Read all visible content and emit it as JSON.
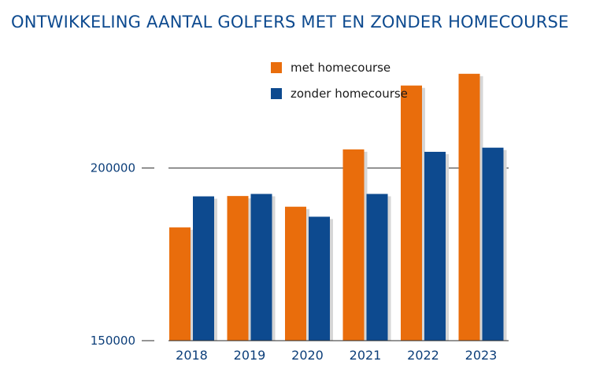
{
  "chart_data": {
    "type": "bar",
    "title": "ONTWIKKELING AANTAL GOLFERS MET EN ZONDER HOMECOURSE",
    "xlabel": "",
    "ylabel": "",
    "categories": [
      "2018",
      "2019",
      "2020",
      "2021",
      "2022",
      "2023"
    ],
    "series": [
      {
        "name": "met homecourse",
        "color": "#e96d0c",
        "values": [
          182800,
          191900,
          188800,
          205400,
          223900,
          227300
        ]
      },
      {
        "name": "zonder homecourse",
        "color": "#0d4a8f",
        "values": [
          191800,
          192500,
          185900,
          192500,
          204700,
          205900
        ]
      }
    ],
    "ylim": [
      150000,
      235000
    ],
    "yticks": [
      150000,
      200000
    ],
    "ytick_labels": [
      "150000",
      "200000"
    ],
    "grid": true,
    "legend_position": "top-center",
    "colors": {
      "title": "#0d4a8f",
      "axis": "#0d3f7a",
      "shadow": "#d6d6d6"
    }
  }
}
